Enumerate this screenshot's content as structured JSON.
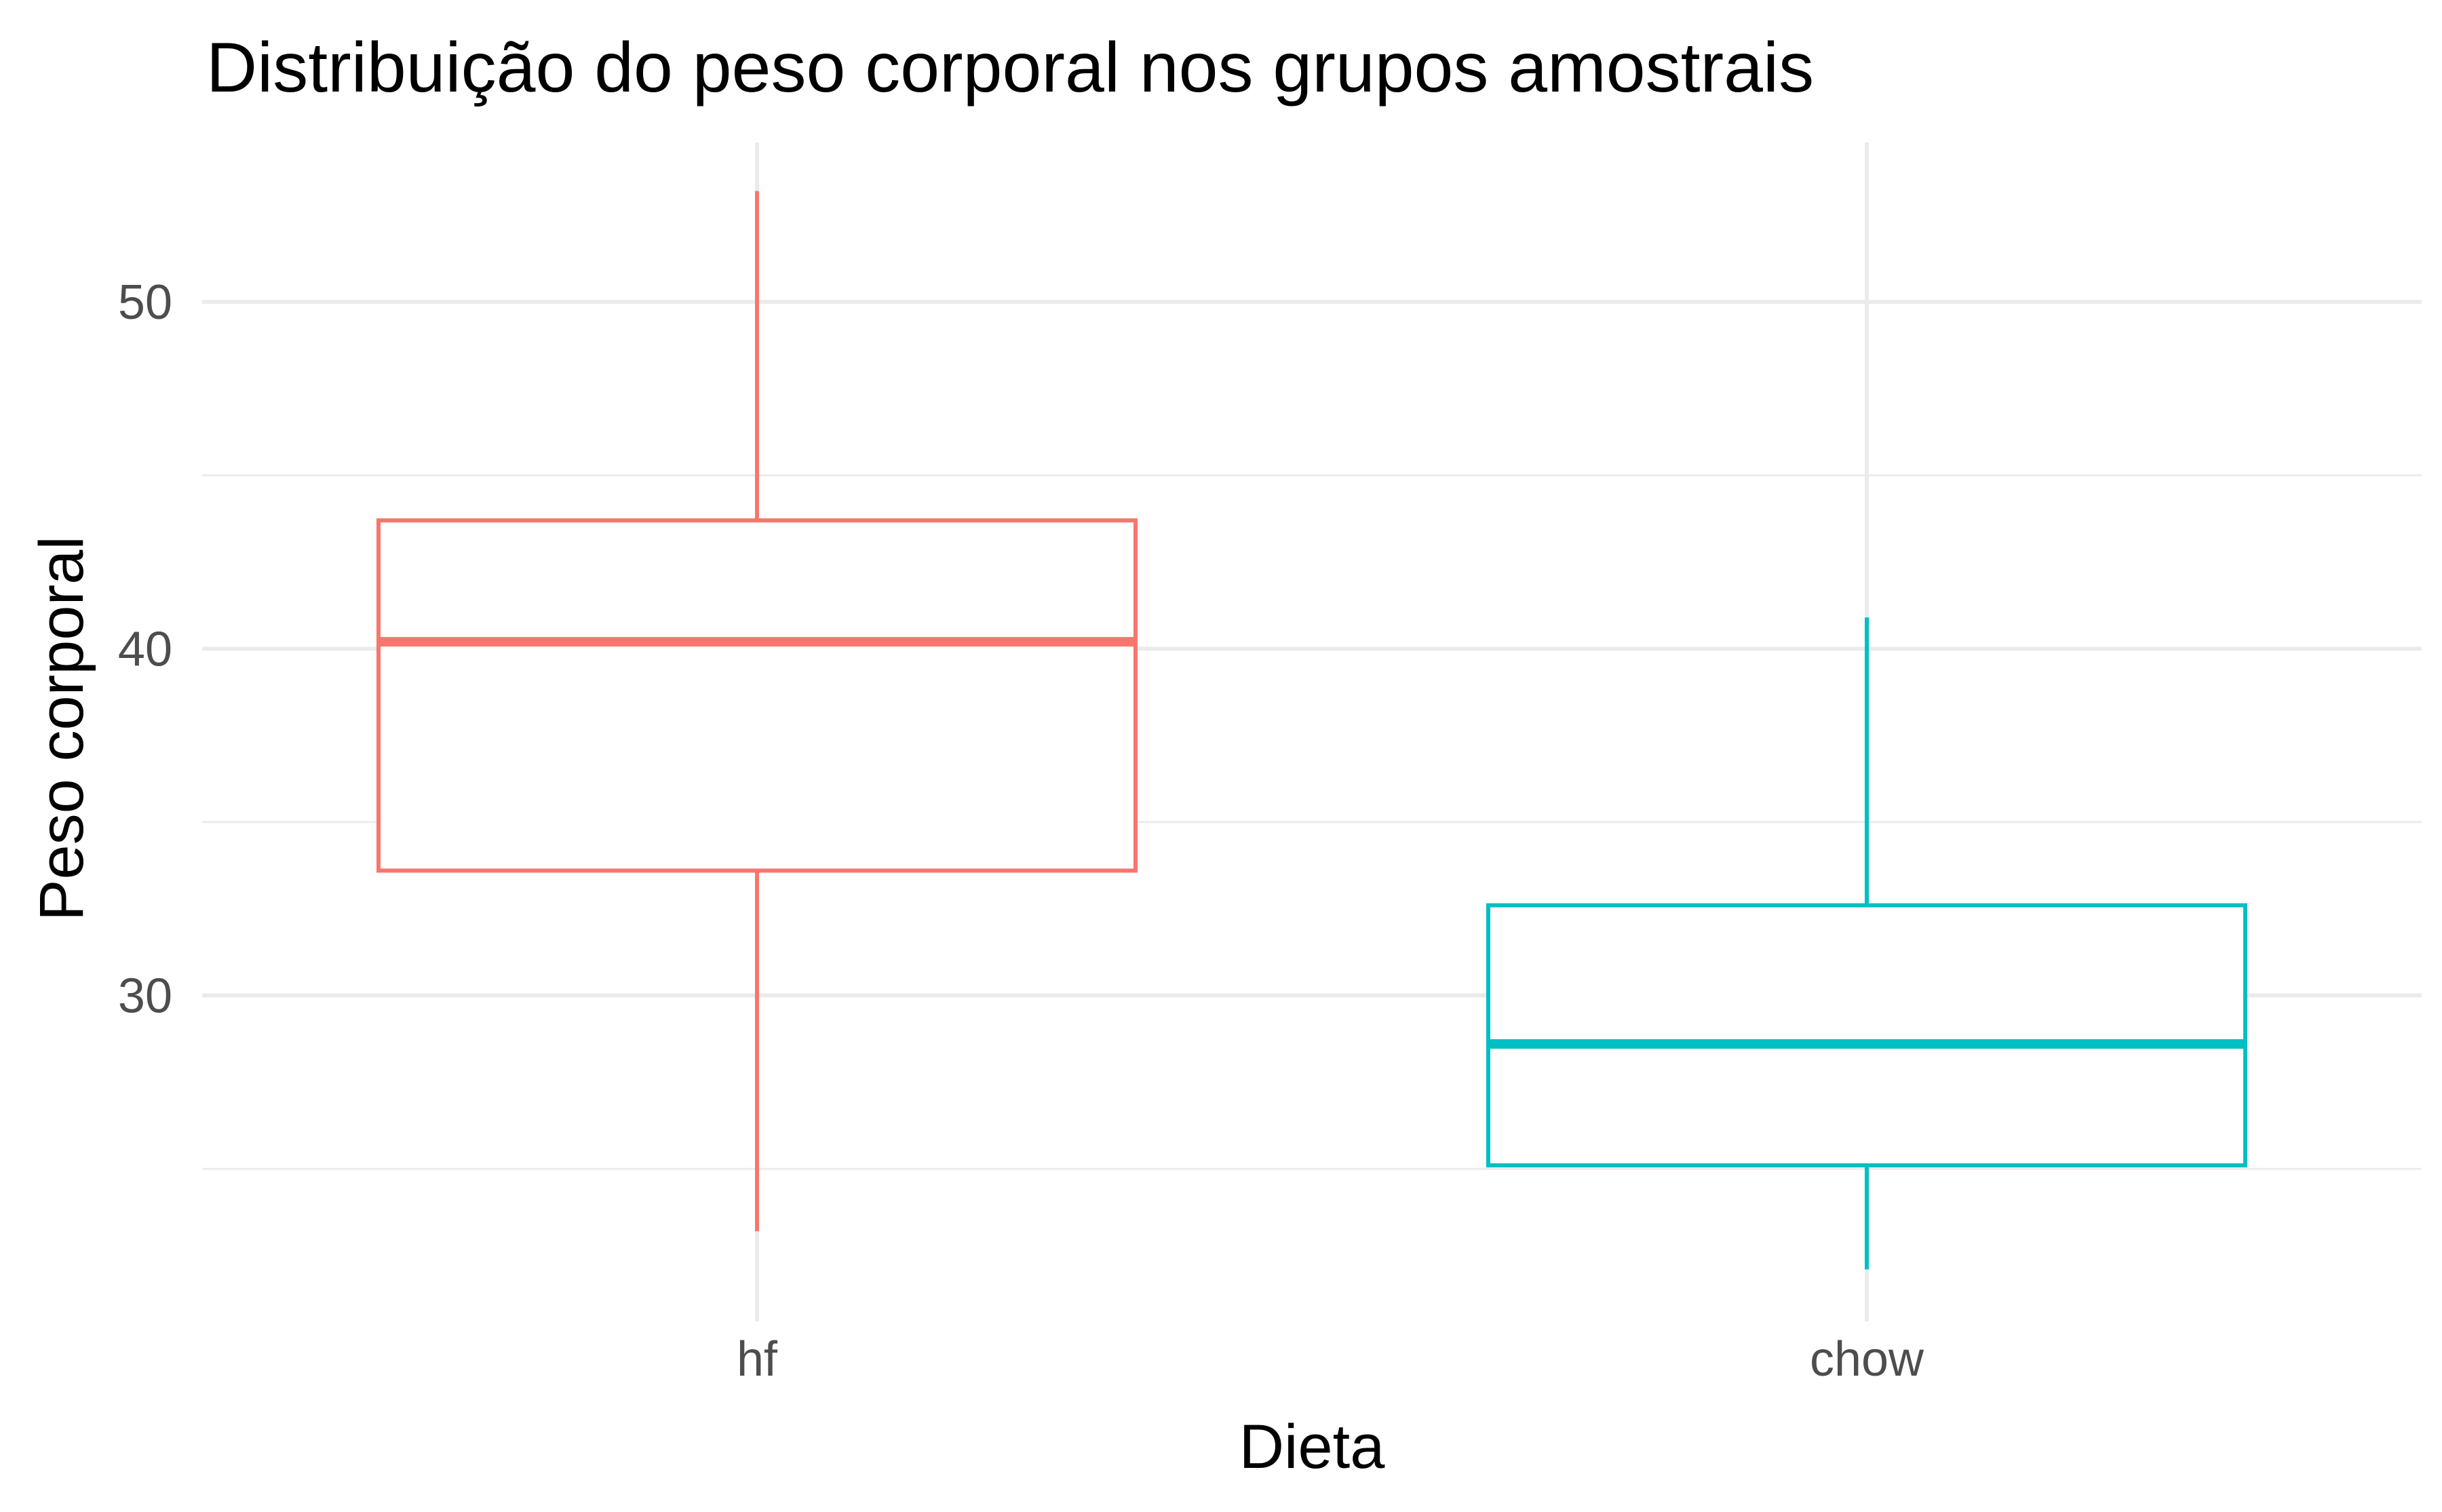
{
  "chart_data": {
    "type": "boxplot",
    "title": "Distribuição do peso corporal nos grupos amostrais",
    "xlabel": "Dieta",
    "ylabel": "Peso corporal",
    "categories": [
      "hf",
      "chow"
    ],
    "ylim": [
      20.6,
      54.6
    ],
    "y_ticks": [
      30,
      40,
      50
    ],
    "y_tick_labels": [
      "30",
      "40",
      "50"
    ],
    "grid": true,
    "legend": "none",
    "boxes": [
      {
        "category": "hf",
        "whisker_low": 23.2,
        "q1": 33.6,
        "median": 40.2,
        "q3": 43.7,
        "whisker_high": 53.2,
        "color": "#F8766D"
      },
      {
        "category": "chow",
        "whisker_low": 22.1,
        "q1": 25.1,
        "median": 28.6,
        "q3": 32.6,
        "whisker_high": 40.9,
        "color": "#00BFC4"
      }
    ]
  }
}
